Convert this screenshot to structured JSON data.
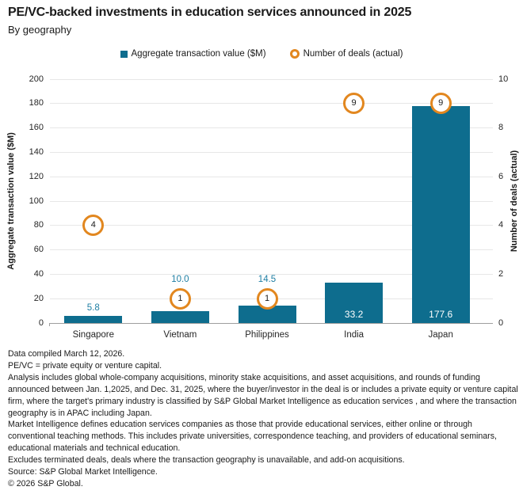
{
  "header": {
    "title": "PE/VC-backed investments in education services announced in 2025",
    "subtitle": "By geography"
  },
  "legend": {
    "bar_label": "Aggregate transaction value ($M)",
    "deal_label": "Number of deals (actual)"
  },
  "colors": {
    "bar": "#0E6D8E",
    "deal_ring": "#E2871F",
    "value_label": "#1E7EA3",
    "inside_label": "#ffffff"
  },
  "chart_data": {
    "type": "bar",
    "title": "PE/VC-backed investments in education services announced in 2025",
    "subtitle": "By geography",
    "categories": [
      "Singapore",
      "Vietnam",
      "Philippines",
      "India",
      "Japan"
    ],
    "series": [
      {
        "name": "Aggregate transaction value ($M)",
        "type": "bar",
        "axis": "left",
        "values": [
          5.8,
          10.0,
          14.5,
          33.2,
          177.6
        ]
      },
      {
        "name": "Number of deals (actual)",
        "type": "point",
        "axis": "right",
        "values": [
          4,
          1,
          1,
          9,
          9
        ]
      }
    ],
    "bar_value_labels": [
      "5.8",
      "10.0",
      "14.5",
      "33.2",
      "177.6"
    ],
    "deal_value_labels": [
      "4",
      "1",
      "1",
      "9",
      "9"
    ],
    "left_axis": {
      "label": "Aggregate transaction value ($M)",
      "min": 0,
      "max": 200,
      "step": 20
    },
    "right_axis": {
      "label": "Number of deals (actual)",
      "min": 0,
      "max": 10,
      "step": 2
    },
    "grid": "horizontal",
    "legend_position": "top-center"
  },
  "footer": {
    "lines": [
      "Data compiled March 12, 2026.",
      "PE/VC = private equity or venture capital.",
      "Analysis includes global whole-company acquisitions, minority stake acquisitions, and asset acquisitions, and rounds of funding announced between Jan. 1,2025, and Dec. 31, 2025, where the buyer/investor in the deal is or includes a private equity or venture capital firm,  where the target's primary industry is classified by S&P Global Market Intelligence as education services , and where the transaction geography is in APAC including Japan.",
      "Market Intelligence defines education services companies as those that provide educational services, either online or through conventional teaching methods. This includes private universities, correspondence teaching, and providers of educational seminars, educational materials and technical education.",
      "Excludes terminated deals,  deals where the transaction geography is unavailable, and add-on acquisitions.",
      "Source: S&P Global Market Intelligence.",
      "© 2026 S&P Global."
    ]
  }
}
